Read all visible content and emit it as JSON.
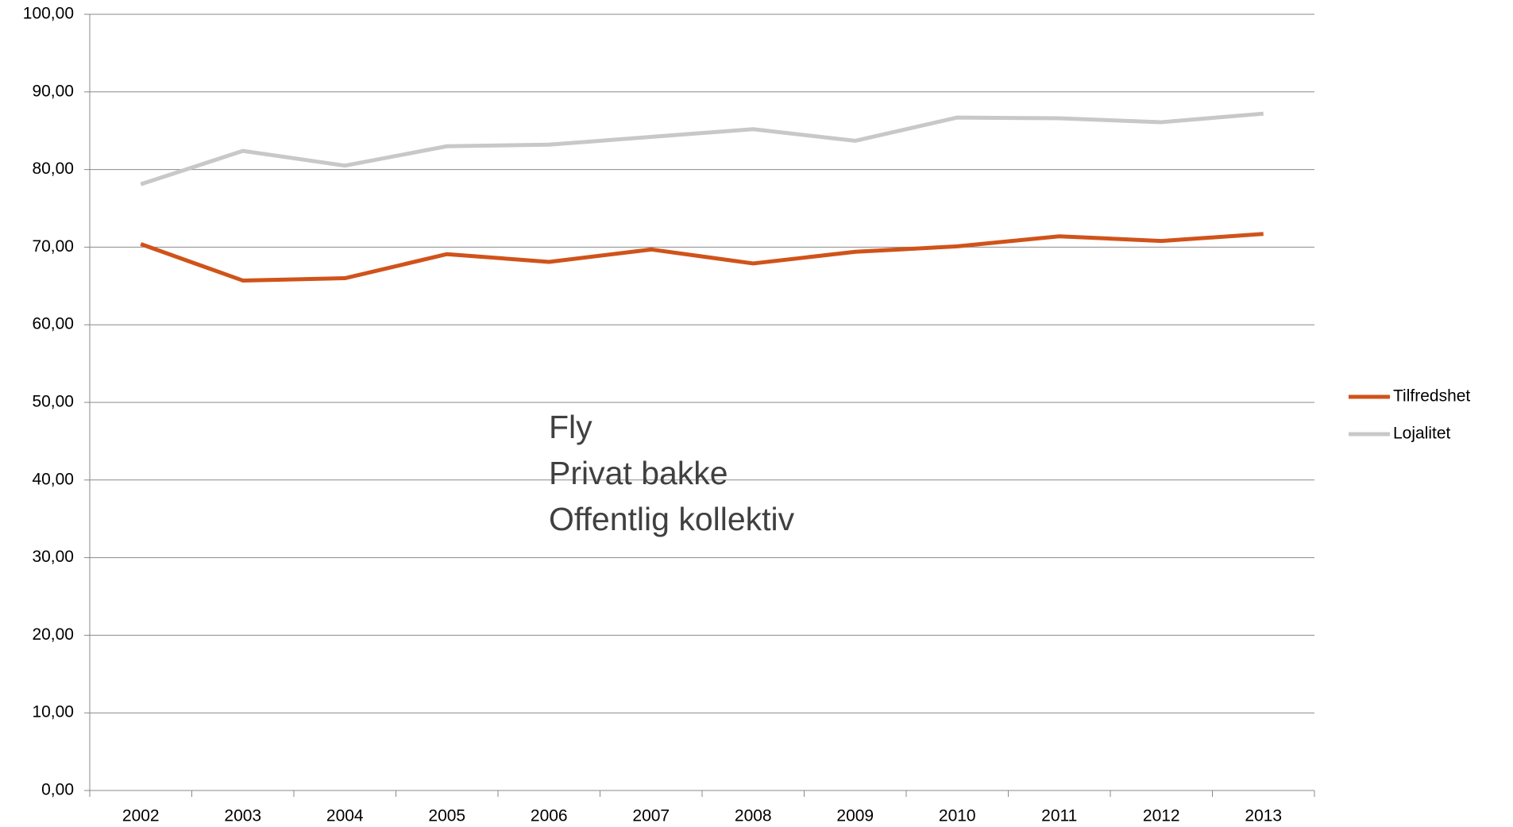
{
  "chart_data": {
    "type": "line",
    "categories": [
      "2002",
      "2003",
      "2004",
      "2005",
      "2006",
      "2007",
      "2008",
      "2009",
      "2010",
      "2011",
      "2012",
      "2013"
    ],
    "series": [
      {
        "name": "Tilfredshet",
        "color": "#d0531a",
        "values": [
          70.4,
          65.7,
          66.0,
          69.1,
          68.1,
          69.7,
          67.9,
          69.4,
          70.1,
          71.4,
          70.8,
          71.7
        ]
      },
      {
        "name": "Lojalitet",
        "color": "#c8c8c8",
        "values": [
          78.1,
          82.4,
          80.5,
          83.0,
          83.2,
          84.2,
          85.2,
          83.7,
          86.7,
          86.6,
          86.1,
          87.2
        ]
      }
    ],
    "ylim": [
      0,
      100
    ],
    "yticks": [
      {
        "value": 0,
        "label": "0,00"
      },
      {
        "value": 10,
        "label": "10,00"
      },
      {
        "value": 20,
        "label": "20,00"
      },
      {
        "value": 30,
        "label": "30,00"
      },
      {
        "value": 40,
        "label": "40,00"
      },
      {
        "value": 50,
        "label": "50,00"
      },
      {
        "value": 60,
        "label": "60,00"
      },
      {
        "value": 70,
        "label": "70,00"
      },
      {
        "value": 80,
        "label": "80,00"
      },
      {
        "value": 90,
        "label": "90,00"
      },
      {
        "value": 100,
        "label": "100,00"
      }
    ],
    "grid": true,
    "legend": "right",
    "annotations": [
      "Fly",
      "Privat bakke",
      "Offentlig kollektiv"
    ]
  }
}
